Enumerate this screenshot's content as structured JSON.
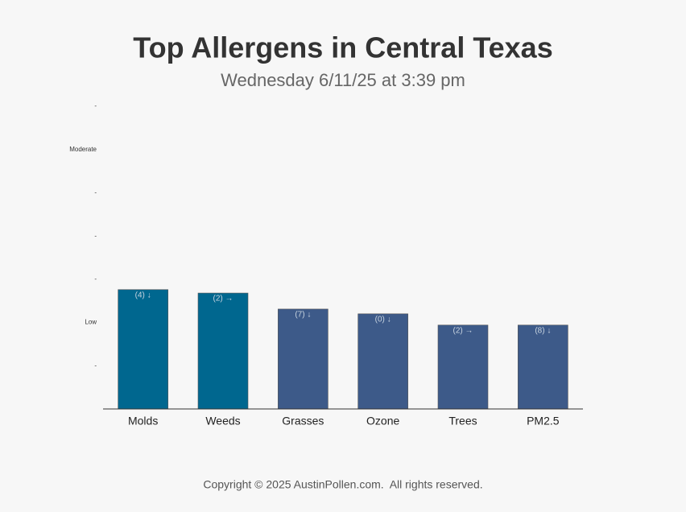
{
  "chart_data": {
    "type": "bar",
    "title": "Top Allergens in Central Texas",
    "subtitle": "Wednesday 6/11/25 at 3:39 pm",
    "categories": [
      "Molds",
      "Weeds",
      "Grasses",
      "Ozone",
      "Trees",
      "PM2.5"
    ],
    "values": [
      2.76,
      2.68,
      2.31,
      2.2,
      1.94,
      1.94
    ],
    "bar_labels": [
      "(4) ↓",
      "(2) →",
      "(7) ↓",
      "(0) ↓",
      "(2) →",
      "(8) ↓"
    ],
    "colors": [
      "#00678f",
      "#00678f",
      "#3d5a89",
      "#3d5a89",
      "#3d5a89",
      "#3d5a89"
    ],
    "ylim": [
      0,
      7
    ],
    "yticks": [
      {
        "value": 1,
        "label": "-"
      },
      {
        "value": 2,
        "label": "Low"
      },
      {
        "value": 3,
        "label": "-"
      },
      {
        "value": 4,
        "label": "-"
      },
      {
        "value": 5,
        "label": "-"
      },
      {
        "value": 6,
        "label": "Moderate"
      },
      {
        "value": 7,
        "label": "-"
      }
    ],
    "footer": "Copyright © 2025 AustinPollen.com.  All rights reserved."
  }
}
